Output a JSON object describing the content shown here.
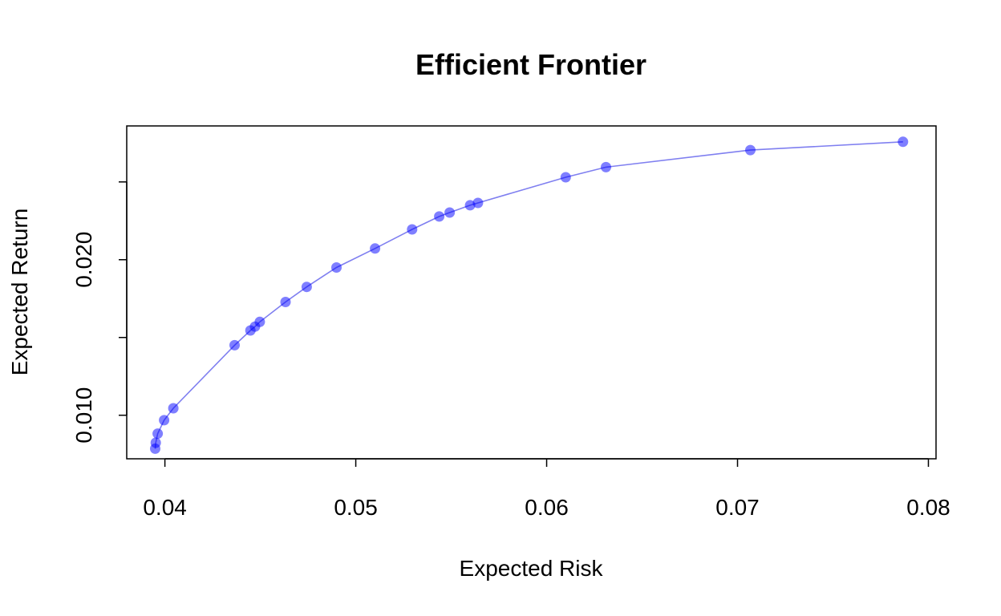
{
  "chart_data": {
    "type": "scatter",
    "title": "Efficient Frontier",
    "xlabel": "Expected Risk",
    "ylabel": "Expected Return",
    "xlim": [
      0.038,
      0.0804
    ],
    "ylim": [
      0.0072,
      0.0286
    ],
    "xticks": [
      0.04,
      0.05,
      0.06,
      0.07,
      0.08
    ],
    "xtick_labels": [
      "0.04",
      "0.05",
      "0.06",
      "0.07",
      "0.08"
    ],
    "yticks": [
      0.01,
      0.015,
      0.02,
      0.025
    ],
    "ytick_labels": [
      "0.010",
      "",
      "0.020",
      ""
    ],
    "grid": false,
    "legend": "none",
    "line_color": "#7f7ff0",
    "point_color": "#0000ff",
    "series": [
      {
        "points": [
          {
            "x": 0.03949,
            "y": 0.00785
          },
          {
            "x": 0.03952,
            "y": 0.00823
          },
          {
            "x": 0.03962,
            "y": 0.00882
          },
          {
            "x": 0.03996,
            "y": 0.00968
          },
          {
            "x": 0.04044,
            "y": 0.01045
          },
          {
            "x": 0.04365,
            "y": 0.0145
          },
          {
            "x": 0.04448,
            "y": 0.01545
          },
          {
            "x": 0.04472,
            "y": 0.0157
          },
          {
            "x": 0.04497,
            "y": 0.016
          },
          {
            "x": 0.04632,
            "y": 0.01728
          },
          {
            "x": 0.04743,
            "y": 0.01825
          },
          {
            "x": 0.04899,
            "y": 0.0195
          },
          {
            "x": 0.05101,
            "y": 0.02072
          },
          {
            "x": 0.05295,
            "y": 0.02195
          },
          {
            "x": 0.05437,
            "y": 0.02278
          },
          {
            "x": 0.05492,
            "y": 0.02303
          },
          {
            "x": 0.05599,
            "y": 0.0235
          },
          {
            "x": 0.0564,
            "y": 0.02365
          },
          {
            "x": 0.061,
            "y": 0.0253
          },
          {
            "x": 0.06311,
            "y": 0.02595
          },
          {
            "x": 0.07067,
            "y": 0.02705
          },
          {
            "x": 0.07867,
            "y": 0.02758
          }
        ]
      }
    ]
  }
}
